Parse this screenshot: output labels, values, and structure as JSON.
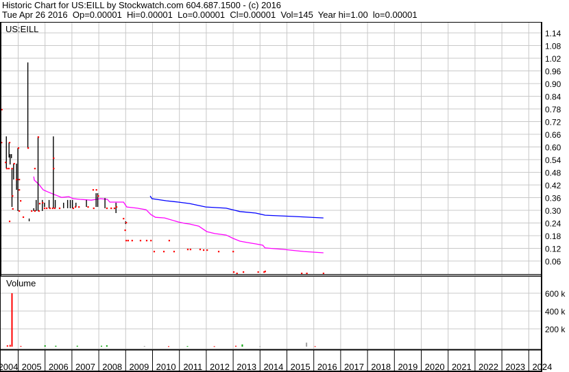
{
  "header": {
    "title": "Historic Chart for US:EILL by Stockwatch.com 604.687.1500 - (c) 2016",
    "quote": "Tue Apr 26 2016  Op=0.00001  Hi=0.00001  Lo=0.00001  Cl=0.00001  Vol=145  Year hi=1.00  lo=0.00001"
  },
  "colors": {
    "close": "#ff0000",
    "ma_short": "#ff00ff",
    "ma_long": "#0000ff",
    "hl_bar": "#000000",
    "grid": "#c8c8c8",
    "vol_up": "#00a000",
    "vol_down": "#ff0000",
    "vol_flat": "#a0a0a0"
  },
  "chart_data": [
    {
      "type": "line",
      "symbol": "US:EILL",
      "yaxis_side": "right",
      "ylim": [
        0,
        1.14
      ],
      "yticks": [
        "1.14",
        "1.08",
        "1.02",
        "0.96",
        "0.90",
        "0.84",
        "0.78",
        "0.72",
        "0.66",
        "0.60",
        "0.54",
        "0.48",
        "0.42",
        "0.36",
        "0.30",
        "0.24",
        "0.18",
        "0.12",
        "0.06"
      ],
      "grid": true,
      "hl_bars": [
        [
          2004.56,
          0.65,
          0.498
        ],
        [
          2004.66,
          0.621,
          0.55
        ],
        [
          2004.7,
          0.566,
          0.517
        ],
        [
          2004.75,
          0.566,
          0.547
        ],
        [
          2004.77,
          0.498,
          0.316
        ],
        [
          2004.83,
          0.521,
          0.446
        ],
        [
          2004.94,
          0.521,
          0.397
        ],
        [
          2004.99,
          0.595,
          0.297
        ],
        [
          2005.36,
          1.0,
          0.595
        ],
        [
          2005.41,
          0.261,
          0.248
        ],
        [
          2005.58,
          0.31,
          0.297
        ],
        [
          2005.67,
          0.349,
          0.297
        ],
        [
          2005.74,
          0.65,
          0.297
        ],
        [
          2005.9,
          0.349,
          0.297
        ],
        [
          2005.98,
          0.336,
          0.316
        ],
        [
          2006.15,
          0.349,
          0.31
        ],
        [
          2006.31,
          0.65,
          0.31
        ],
        [
          2006.38,
          0.349,
          0.31
        ],
        [
          2006.69,
          0.336,
          0.31
        ],
        [
          2006.84,
          0.349,
          0.31
        ],
        [
          2006.94,
          0.349,
          0.31
        ],
        [
          2007.02,
          0.349,
          0.31
        ],
        [
          2007.15,
          0.336,
          0.316
        ],
        [
          2007.54,
          0.349,
          0.316
        ],
        [
          2007.9,
          0.381,
          0.316
        ],
        [
          2007.96,
          0.381,
          0.316
        ],
        [
          2008.23,
          0.358,
          0.31
        ],
        [
          2008.64,
          0.336,
          0.287
        ],
        [
          2009.0,
          0.248,
          0.235
        ]
      ],
      "closes": [
        [
          2004.39,
          0.777
        ],
        [
          2004.38,
          0.621
        ],
        [
          2004.53,
          0.527
        ],
        [
          2004.58,
          0.498
        ],
        [
          2004.65,
          0.498
        ],
        [
          2004.68,
          0.248
        ],
        [
          2004.68,
          0.621
        ],
        [
          2004.77,
          0.498
        ],
        [
          2004.8,
          0.307
        ],
        [
          2004.79,
          0.368
        ],
        [
          2004.85,
          0.521
        ],
        [
          2004.94,
          0.446
        ],
        [
          2005.01,
          0.595
        ],
        [
          2005.04,
          0.446
        ],
        [
          2005.04,
          0.397
        ],
        [
          2005.04,
          0.297
        ],
        [
          2005.09,
          0.345
        ],
        [
          2005.19,
          0.268
        ],
        [
          2005.37,
          0.595
        ],
        [
          2005.5,
          0.297
        ],
        [
          2005.62,
          0.498
        ],
        [
          2005.62,
          0.297
        ],
        [
          2005.75,
          0.647
        ],
        [
          2005.77,
          0.297
        ],
        [
          2005.8,
          0.332
        ],
        [
          2005.91,
          0.336
        ],
        [
          2005.98,
          0.31
        ],
        [
          2006.06,
          0.31
        ],
        [
          2006.18,
          0.31
        ],
        [
          2006.28,
          0.31
        ],
        [
          2006.32,
          0.547
        ],
        [
          2006.32,
          0.498
        ],
        [
          2006.36,
          0.31
        ],
        [
          2006.54,
          0.31
        ],
        [
          2007.05,
          0.31
        ],
        [
          2007.13,
          0.316
        ],
        [
          2007.26,
          0.316
        ],
        [
          2007.6,
          0.316
        ],
        [
          2007.79,
          0.397
        ],
        [
          2007.91,
          0.397
        ],
        [
          2007.81,
          0.31
        ],
        [
          2007.98,
          0.368
        ],
        [
          2008.3,
          0.31
        ],
        [
          2008.46,
          0.31
        ],
        [
          2008.58,
          0.31
        ],
        [
          2008.66,
          0.316
        ],
        [
          2008.92,
          0.261
        ],
        [
          2009.02,
          0.242
        ],
        [
          2008.98,
          0.206
        ],
        [
          2009.02,
          0.157
        ],
        [
          2009.09,
          0.157
        ],
        [
          2009.24,
          0.157
        ],
        [
          2009.55,
          0.157
        ],
        [
          2009.78,
          0.157
        ],
        [
          2009.94,
          0.157
        ],
        [
          2010.62,
          0.157
        ],
        [
          2010.06,
          0.105
        ],
        [
          2010.42,
          0.105
        ],
        [
          2010.8,
          0.105
        ],
        [
          2011.31,
          0.115
        ],
        [
          2011.41,
          0.115
        ],
        [
          2011.77,
          0.115
        ],
        [
          2011.9,
          0.112
        ],
        [
          2012.03,
          0.112
        ],
        [
          2012.46,
          0.105
        ],
        [
          2013.0,
          0.105
        ],
        [
          2013.02,
          0.008
        ],
        [
          2013.14,
          1e-05
        ],
        [
          2013.38,
          0.008
        ],
        [
          2013.93,
          0.008
        ],
        [
          2014.15,
          0.008
        ],
        [
          2014.19,
          0.011
        ],
        [
          2015.55,
          1e-05
        ],
        [
          2015.74,
          1e-05
        ],
        [
          2016.36,
          1e-05
        ]
      ],
      "series": [
        {
          "values": [
            [
              2005.58,
              0.46
            ],
            [
              2005.6,
              0.443
            ],
            [
              2005.77,
              0.423
            ],
            [
              2005.93,
              0.397
            ],
            [
              2006.11,
              0.387
            ],
            [
              2006.36,
              0.374
            ],
            [
              2006.62,
              0.361
            ],
            [
              2006.88,
              0.365
            ],
            [
              2007.05,
              0.355
            ],
            [
              2007.3,
              0.352
            ],
            [
              2007.72,
              0.348
            ],
            [
              2007.9,
              0.352
            ],
            [
              2008.07,
              0.355
            ],
            [
              2008.32,
              0.352
            ],
            [
              2008.41,
              0.339
            ],
            [
              2008.92,
              0.339
            ],
            [
              2009.04,
              0.316
            ],
            [
              2009.43,
              0.31
            ],
            [
              2009.76,
              0.303
            ],
            [
              2009.94,
              0.28
            ],
            [
              2010.11,
              0.267
            ],
            [
              2010.45,
              0.264
            ],
            [
              2010.96,
              0.245
            ],
            [
              2011.21,
              0.238
            ],
            [
              2011.38,
              0.235
            ],
            [
              2011.72,
              0.225
            ],
            [
              2012.02,
              0.199
            ],
            [
              2012.31,
              0.19
            ],
            [
              2012.74,
              0.183
            ],
            [
              2013.0,
              0.167
            ],
            [
              2013.25,
              0.154
            ],
            [
              2013.51,
              0.148
            ],
            [
              2013.84,
              0.141
            ],
            [
              2014.1,
              0.135
            ],
            [
              2014.19,
              0.122
            ],
            [
              2014.86,
              0.115
            ],
            [
              2015.63,
              0.105
            ],
            [
              2016.36,
              0.099
            ]
          ]
        },
        {
          "values": [
            [
              2009.91,
              0.368
            ],
            [
              2009.98,
              0.355
            ],
            [
              2010.52,
              0.345
            ],
            [
              2010.96,
              0.339
            ],
            [
              2011.38,
              0.332
            ],
            [
              2011.98,
              0.316
            ],
            [
              2012.74,
              0.31
            ],
            [
              2013.04,
              0.301
            ],
            [
              2013.25,
              0.294
            ],
            [
              2013.84,
              0.287
            ],
            [
              2014.19,
              0.277
            ],
            [
              2015.21,
              0.271
            ],
            [
              2016.36,
              0.264
            ]
          ]
        }
      ]
    },
    {
      "type": "bar",
      "title": "Volume",
      "ylim": [
        0,
        800000
      ],
      "yticks": [
        "600 k",
        "400 k",
        "200 k"
      ],
      "bars": [
        [
          2004.6,
          15000,
          "vol_down"
        ],
        [
          2004.7,
          20000,
          "vol_down"
        ],
        [
          2004.77,
          600000,
          "vol_down"
        ],
        [
          2005.1,
          8000,
          "vol_down"
        ],
        [
          2006.0,
          15000,
          "vol_up"
        ],
        [
          2006.4,
          10000,
          "vol_up"
        ],
        [
          2007.2,
          10000,
          "vol_up"
        ],
        [
          2008.1,
          10000,
          "vol_up"
        ],
        [
          2008.3,
          15000,
          "vol_up"
        ],
        [
          2009.7,
          7000,
          "vol_flat"
        ],
        [
          2010.6,
          5000,
          "vol_down"
        ],
        [
          2011.3,
          6000,
          "vol_up"
        ],
        [
          2012.3,
          5000,
          "vol_down"
        ],
        [
          2013.1,
          10000,
          "vol_down"
        ],
        [
          2013.34,
          25000,
          "vol_up"
        ],
        [
          2014.0,
          5000,
          "vol_flat"
        ],
        [
          2015.73,
          45000,
          "vol_flat"
        ],
        [
          2016.05,
          5000,
          "vol_down"
        ]
      ]
    }
  ],
  "xaxis": {
    "tick_labels": [
      "2004",
      "2005",
      "2006",
      "2007",
      "2008",
      "2009",
      "2010",
      "2011",
      "2012",
      "2013",
      "2014",
      "2015",
      "2016",
      "2017",
      "2018",
      "2019",
      "2020",
      "2021",
      "2022",
      "2023",
      "2024"
    ]
  }
}
